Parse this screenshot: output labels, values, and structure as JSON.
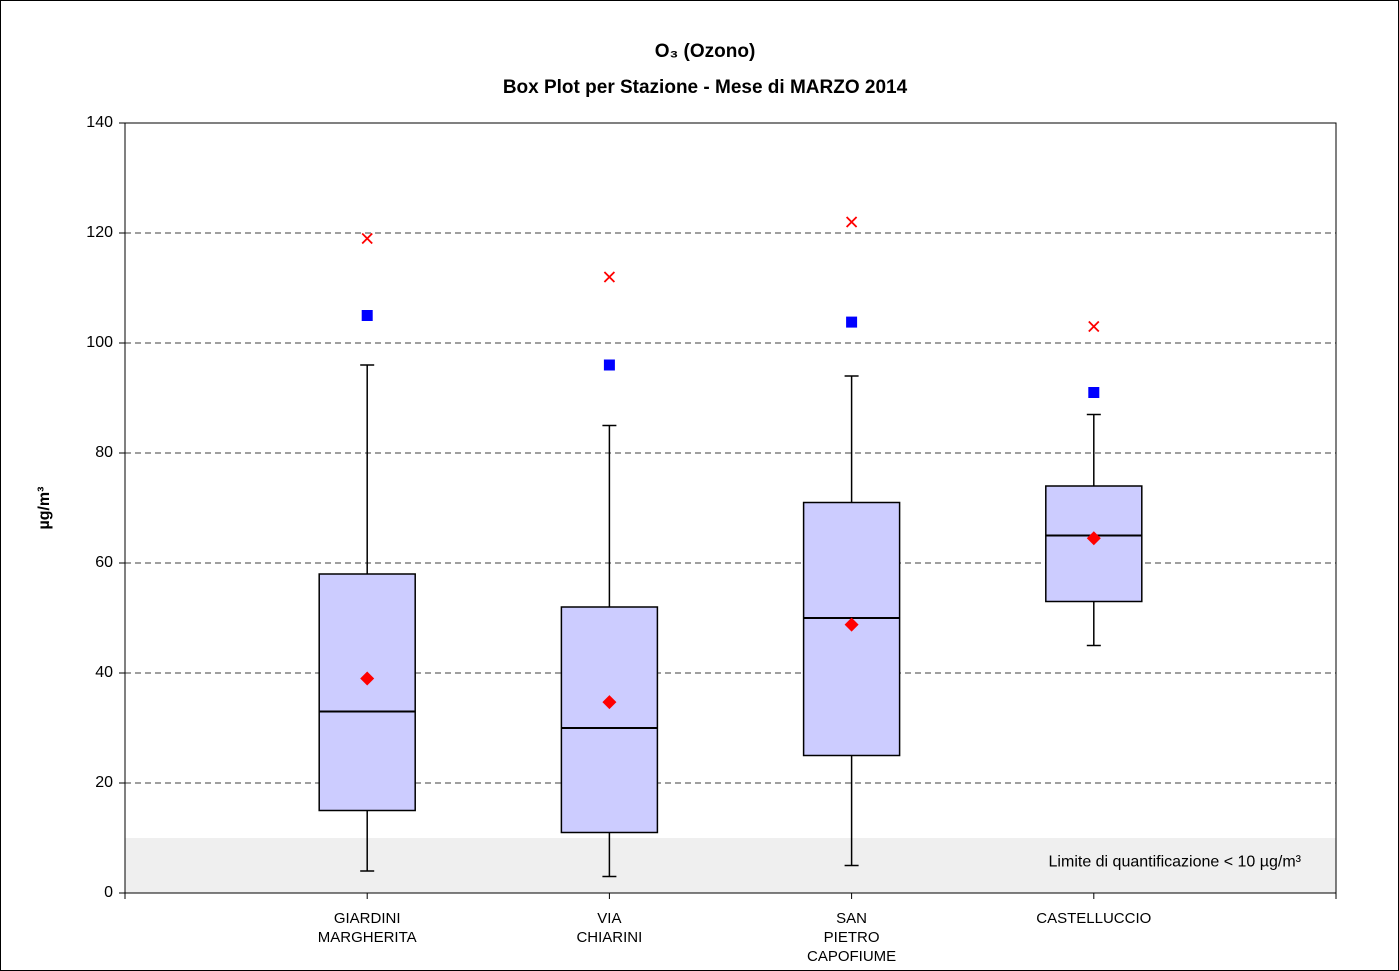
{
  "chart_data": {
    "type": "box",
    "title": "O₃ (Ozono)",
    "subtitle": "Box Plot per Stazione - Mese di MARZO 2014",
    "y_label": "µg/m³",
    "categories": [
      "GIARDINI MARGHERITA",
      "VIA CHIARINI",
      "SAN PIETRO CAPOFIUME",
      "CASTELLUCCIO"
    ],
    "min": [
      4,
      3,
      5,
      45
    ],
    "q1": [
      15,
      11,
      25,
      53
    ],
    "median": [
      33,
      30,
      50,
      65
    ],
    "q3": [
      58,
      52,
      71,
      74
    ],
    "max": [
      96,
      85,
      94,
      87
    ],
    "box_color": "#ccccff",
    "mean": {
      "color": "#ff0000",
      "shape": "diamond",
      "values": [
        39,
        34.7,
        48.8,
        64.5
      ]
    },
    "markers": [
      {
        "shape": "square",
        "color": "#0000ff",
        "values": [
          105,
          96,
          103.8,
          91
        ]
      },
      {
        "shape": "x",
        "color": "#ff0000",
        "values": [
          119,
          112,
          122,
          103
        ]
      }
    ],
    "shaded_band": {
      "range": [
        0,
        10
      ],
      "color": "#efefef",
      "label": "Limite di quantificazione < 10 µg/m³"
    },
    "ylim": [
      0,
      140
    ],
    "yticks": [
      0,
      20,
      40,
      60,
      80,
      100,
      120,
      140
    ],
    "grid": true
  }
}
